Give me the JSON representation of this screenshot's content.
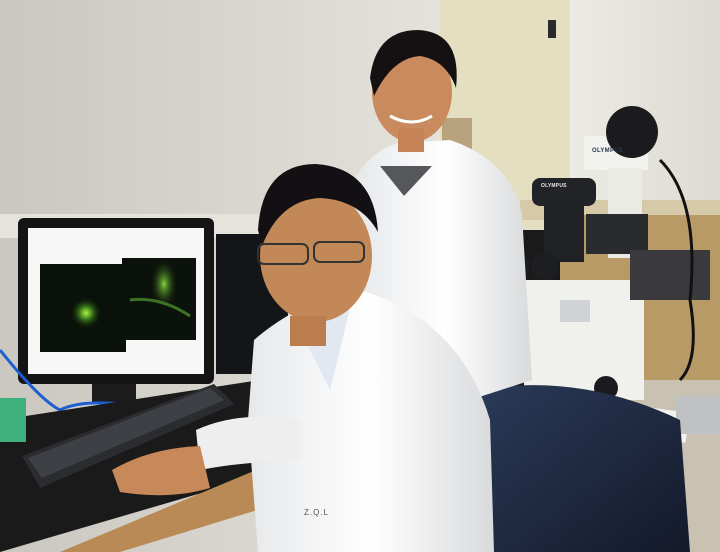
{
  "photo": {
    "microscope_brand": "OLYMPUS",
    "coat_badge": "Z.Q.L"
  }
}
